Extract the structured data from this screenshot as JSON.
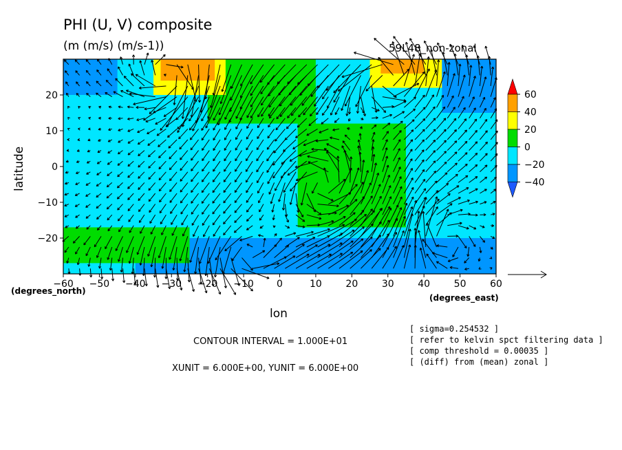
{
  "chart_data": {
    "type": "heatmap",
    "title": "PHI (U, V) composite",
    "subtitle": "(m (m/s) (m/s-1))",
    "run_label": "59L48_non-zonal",
    "xlabel": "lon",
    "ylabel": "latitude",
    "x_unit_label": "(degrees_east)",
    "y_unit_label": "(degrees_north)",
    "xlim": [
      -60,
      60
    ],
    "ylim": [
      -30,
      30
    ],
    "x_ticks": [
      -60,
      -50,
      -40,
      -30,
      -20,
      -10,
      0,
      10,
      20,
      30,
      40,
      50,
      60
    ],
    "y_ticks": [
      -20,
      -10,
      0,
      10,
      20
    ],
    "colorbar": {
      "labels": [
        "60",
        "40",
        "20",
        "0",
        "−20",
        "−40"
      ],
      "levels": [
        -50,
        -40,
        -30,
        -20,
        -10,
        0,
        10,
        20,
        30,
        40,
        50,
        60,
        70
      ],
      "colors": {
        "lt_-40": "#1e5aff",
        "m40_m20": "#0096ff",
        "m20_0": "#00e6ff",
        "0_20": "#00dc00",
        "20_40": "#ffff00",
        "40_60": "#ffa000",
        "gt_60": "#ff0000"
      }
    },
    "field_regions": [
      {
        "lon": [
          -60,
          60
        ],
        "lat": [
          -30,
          30
        ],
        "value": -10
      },
      {
        "lon": [
          -40,
          60
        ],
        "lat": [
          -30,
          -20
        ],
        "value": -30
      },
      {
        "lon": [
          -60,
          -25
        ],
        "lat": [
          -27,
          -17
        ],
        "value": 5
      },
      {
        "lon": [
          5,
          35
        ],
        "lat": [
          -17,
          12
        ],
        "value": 5
      },
      {
        "lon": [
          -20,
          10
        ],
        "lat": [
          12,
          30
        ],
        "value": 5
      },
      {
        "lon": [
          -35,
          -15
        ],
        "lat": [
          20,
          30
        ],
        "value": 25
      },
      {
        "lon": [
          -33,
          -18
        ],
        "lat": [
          24,
          30
        ],
        "value": 45
      },
      {
        "lon": [
          25,
          45
        ],
        "lat": [
          22,
          30
        ],
        "value": 25
      },
      {
        "lon": [
          28,
          40
        ],
        "lat": [
          26,
          30
        ],
        "value": 45
      },
      {
        "lon": [
          -60,
          -45
        ],
        "lat": [
          20,
          30
        ],
        "value": -30
      },
      {
        "lon": [
          45,
          60
        ],
        "lat": [
          15,
          30
        ],
        "value": -30
      }
    ],
    "vector_field": {
      "u_scale": 6.0,
      "v_scale": 6.0,
      "grid_step_deg": 3
    }
  },
  "annotations": {
    "contour_interval": "CONTOUR INTERVAL = 1.000E+01",
    "units": "XUNIT = 6.000E+00, YUNIT = 6.000E+00",
    "info_lines": [
      "[ sigma=0.254532 ]",
      "[ refer to kelvin spct filtering data ]",
      "[ comp threshold = 0.00035 ]",
      "[ (diff) from (mean) zonal ]"
    ]
  }
}
